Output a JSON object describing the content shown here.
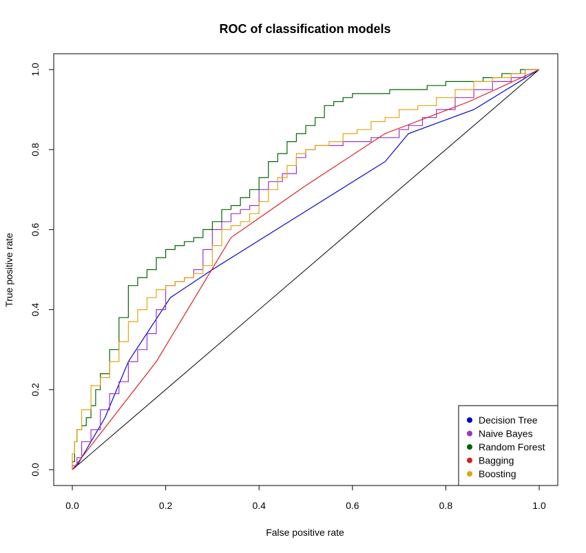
{
  "chart_data": {
    "type": "line",
    "title": "ROC of classification models",
    "xlabel": "False positive rate",
    "ylabel": "True positive rate",
    "xlim": [
      0,
      1
    ],
    "ylim": [
      0,
      1
    ],
    "x_ticks": [
      "0.0",
      "0.2",
      "0.4",
      "0.6",
      "0.8",
      "1.0"
    ],
    "y_ticks": [
      "0.0",
      "0.2",
      "0.4",
      "0.6",
      "0.8",
      "1.0"
    ],
    "grid": false,
    "legend_position": "bottom-right",
    "reference_line": {
      "x": [
        0,
        1
      ],
      "y": [
        0,
        1
      ],
      "color": "#000000"
    },
    "series": [
      {
        "name": "Decision Tree",
        "color": "#0000cd",
        "x": [
          0,
          0.01,
          0.03,
          0.07,
          0.12,
          0.21,
          0.3,
          0.67,
          0.72,
          0.86,
          1.0
        ],
        "y": [
          0,
          0.01,
          0.05,
          0.13,
          0.27,
          0.43,
          0.5,
          0.77,
          0.84,
          0.9,
          1.0
        ]
      },
      {
        "name": "Naive Bayes",
        "color": "#9932cc",
        "x": [
          0,
          0.01,
          0.02,
          0.04,
          0.06,
          0.08,
          0.1,
          0.12,
          0.14,
          0.16,
          0.18,
          0.2,
          0.22,
          0.24,
          0.26,
          0.28,
          0.3,
          0.32,
          0.34,
          0.36,
          0.38,
          0.4,
          0.42,
          0.45,
          0.48,
          0.5,
          0.52,
          0.55,
          0.58,
          0.61,
          0.64,
          0.67,
          0.7,
          0.72,
          0.75,
          0.78,
          0.82,
          0.86,
          0.9,
          0.94,
          0.97,
          1.0
        ],
        "y": [
          0,
          0.01,
          0.03,
          0.07,
          0.1,
          0.15,
          0.19,
          0.22,
          0.27,
          0.3,
          0.34,
          0.4,
          0.46,
          0.47,
          0.48,
          0.5,
          0.55,
          0.6,
          0.62,
          0.64,
          0.65,
          0.66,
          0.7,
          0.72,
          0.74,
          0.78,
          0.8,
          0.81,
          0.81,
          0.82,
          0.82,
          0.83,
          0.83,
          0.85,
          0.86,
          0.88,
          0.9,
          0.93,
          0.95,
          0.97,
          0.98,
          1.0
        ]
      },
      {
        "name": "Random Forest",
        "color": "#006400",
        "x": [
          0,
          0.005,
          0.01,
          0.02,
          0.03,
          0.04,
          0.05,
          0.06,
          0.08,
          0.1,
          0.12,
          0.14,
          0.16,
          0.18,
          0.2,
          0.22,
          0.24,
          0.26,
          0.28,
          0.3,
          0.32,
          0.34,
          0.36,
          0.38,
          0.4,
          0.42,
          0.44,
          0.46,
          0.48,
          0.5,
          0.52,
          0.54,
          0.56,
          0.58,
          0.6,
          0.64,
          0.68,
          0.72,
          0.76,
          0.8,
          0.84,
          0.88,
          0.92,
          0.96,
          1.0
        ],
        "y": [
          0,
          0.02,
          0.07,
          0.1,
          0.11,
          0.13,
          0.16,
          0.2,
          0.24,
          0.3,
          0.38,
          0.46,
          0.48,
          0.5,
          0.53,
          0.55,
          0.56,
          0.57,
          0.58,
          0.6,
          0.62,
          0.65,
          0.66,
          0.68,
          0.7,
          0.73,
          0.77,
          0.79,
          0.82,
          0.84,
          0.86,
          0.88,
          0.91,
          0.92,
          0.93,
          0.94,
          0.94,
          0.95,
          0.95,
          0.96,
          0.97,
          0.97,
          0.98,
          0.99,
          1.0
        ]
      },
      {
        "name": "Bagging",
        "color": "#dc1e1e",
        "x": [
          0,
          0.18,
          0.34,
          0.5,
          0.67,
          0.85,
          1.0
        ],
        "y": [
          0,
          0.27,
          0.58,
          0.71,
          0.84,
          0.92,
          1.0
        ]
      },
      {
        "name": "Boosting",
        "color": "#e1a50f",
        "x": [
          0,
          0.005,
          0.01,
          0.02,
          0.04,
          0.06,
          0.08,
          0.1,
          0.12,
          0.14,
          0.16,
          0.18,
          0.2,
          0.22,
          0.24,
          0.26,
          0.28,
          0.3,
          0.32,
          0.34,
          0.36,
          0.38,
          0.4,
          0.42,
          0.44,
          0.46,
          0.48,
          0.5,
          0.52,
          0.55,
          0.58,
          0.61,
          0.64,
          0.67,
          0.7,
          0.74,
          0.78,
          0.82,
          0.86,
          0.9,
          0.94,
          0.97,
          1.0
        ],
        "y": [
          0,
          0.04,
          0.07,
          0.1,
          0.15,
          0.21,
          0.23,
          0.27,
          0.32,
          0.37,
          0.4,
          0.43,
          0.45,
          0.46,
          0.47,
          0.48,
          0.49,
          0.51,
          0.56,
          0.6,
          0.61,
          0.62,
          0.64,
          0.67,
          0.7,
          0.73,
          0.76,
          0.79,
          0.8,
          0.81,
          0.82,
          0.84,
          0.85,
          0.87,
          0.88,
          0.9,
          0.91,
          0.93,
          0.95,
          0.97,
          0.98,
          0.99,
          1.0
        ]
      }
    ]
  }
}
